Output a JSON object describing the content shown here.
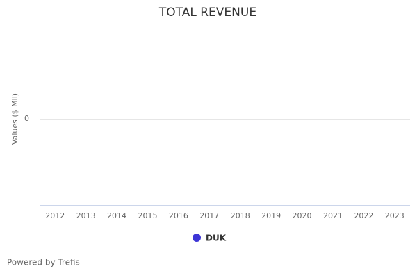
{
  "chart_data": {
    "type": "line",
    "title": "TOTAL REVENUE",
    "y_label": "Values ($ Mil)",
    "categories": [
      "2012",
      "2013",
      "2014",
      "2015",
      "2016",
      "2017",
      "2018",
      "2019",
      "2020",
      "2021",
      "2022",
      "2023"
    ],
    "series": [
      {
        "name": "DUK",
        "color": "#3d35d6",
        "values": [
          null,
          null,
          null,
          null,
          null,
          null,
          null,
          null,
          null,
          null,
          null,
          null
        ]
      }
    ],
    "ylim": [
      -1,
      1
    ],
    "yticks": [
      0
    ],
    "grid": true,
    "legend": "bottom",
    "credits": "Powered by Trefis"
  }
}
